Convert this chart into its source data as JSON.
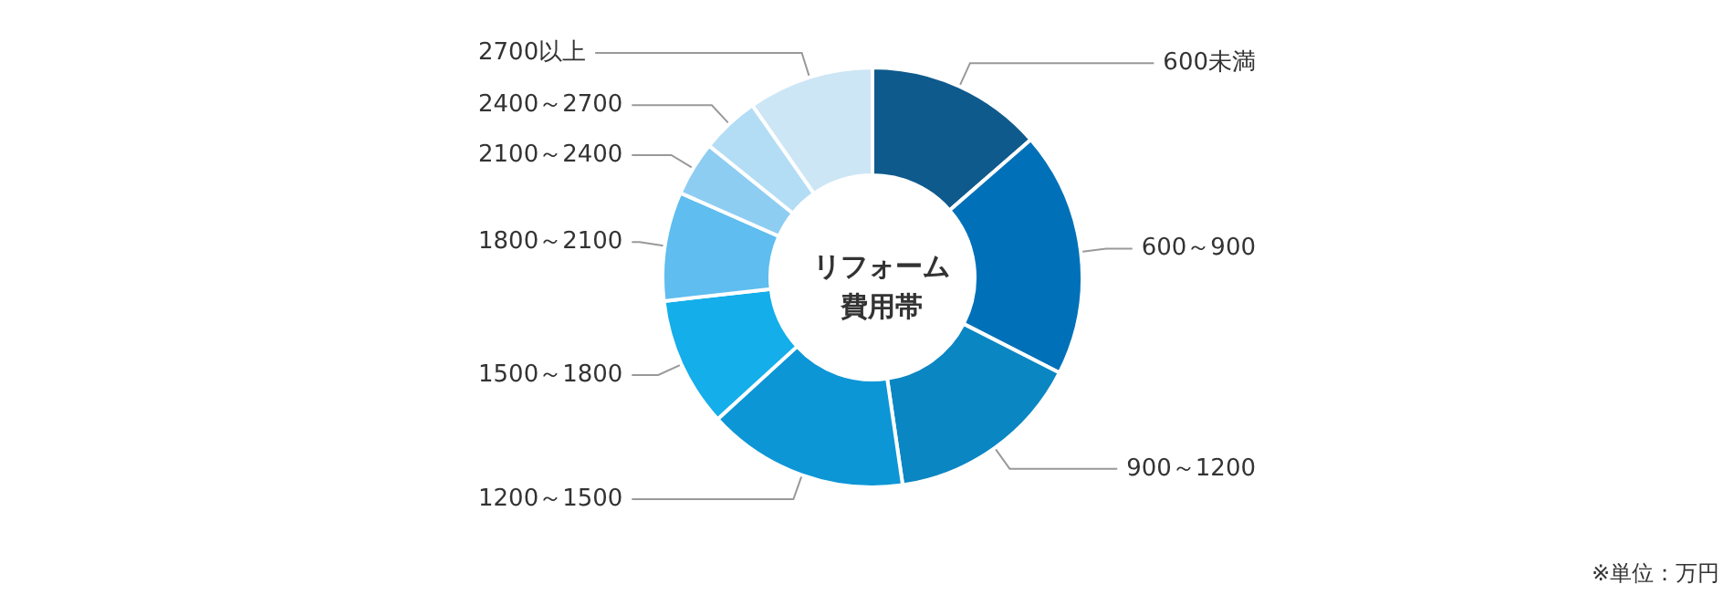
{
  "chart_data": {
    "type": "donut",
    "title": "リフォーム費用帯",
    "categories": [
      "600未満",
      "600～900",
      "900～1200",
      "1200～1500",
      "1500～1800",
      "1800～2100",
      "2100～2400",
      "2400～2700",
      "2700以上"
    ],
    "values": [
      13.6,
      18.9,
      15.2,
      15.5,
      10.0,
      8.4,
      4.2,
      4.5,
      9.7
    ],
    "colors": [
      "#0f5a8c",
      "#0071b9",
      "#0a86c2",
      "#0d96d6",
      "#14aeea",
      "#5fbdef",
      "#8dcdf2",
      "#b3ddf5",
      "#cde6f5"
    ],
    "annotations": [
      "※単位：万円"
    ],
    "legend": false
  }
}
